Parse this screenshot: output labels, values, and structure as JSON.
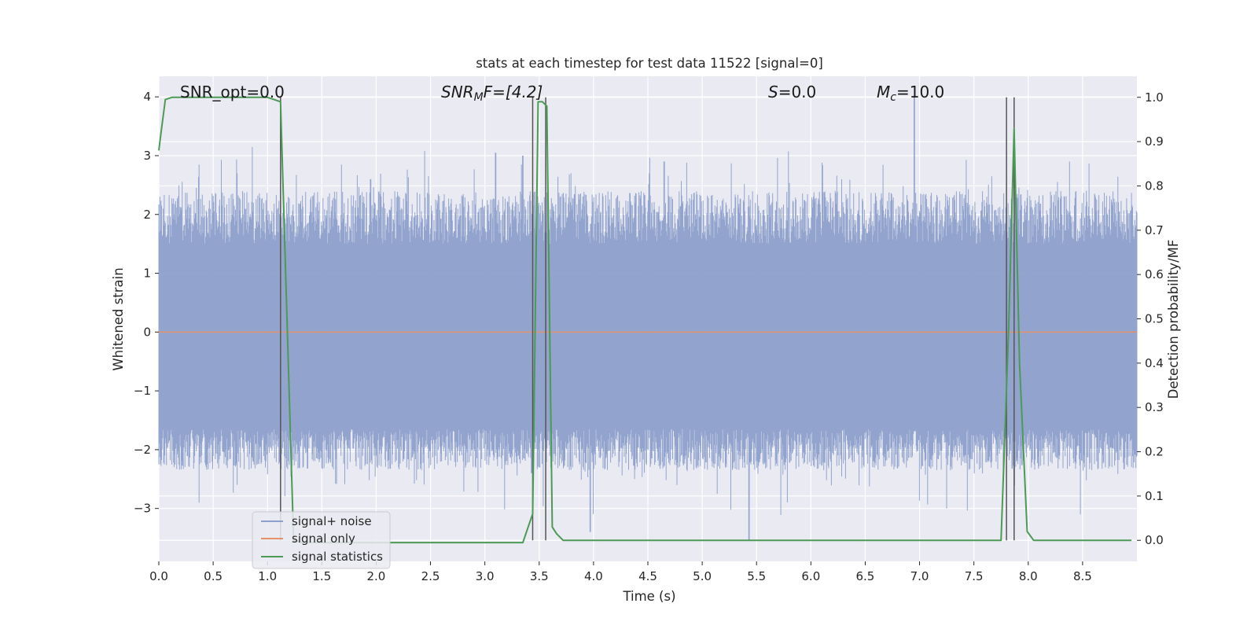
{
  "chart_data": {
    "type": "line",
    "title": "stats at each timestep for test data 11522 [signal=0]",
    "xlabel": "Time (s)",
    "ylabel": "Whitened strain",
    "y2label": "Detection probability/MF",
    "xlim": [
      0,
      9.0
    ],
    "ylim": [
      -3.9,
      4.35
    ],
    "y2lim": [
      -0.0475,
      1.0475
    ],
    "xticks": [
      "0.0",
      "0.5",
      "1.0",
      "1.5",
      "2.0",
      "2.5",
      "3.0",
      "3.5",
      "4.0",
      "4.5",
      "5.0",
      "5.5",
      "6.0",
      "6.5",
      "7.0",
      "7.5",
      "8.0",
      "8.5"
    ],
    "yticks": [
      "4",
      "3",
      "2",
      "1",
      "0",
      "−1",
      "−2",
      "−3"
    ],
    "y2ticks": [
      "1.0",
      "0.9",
      "0.8",
      "0.7",
      "0.6",
      "0.5",
      "0.4",
      "0.3",
      "0.2",
      "0.1",
      "0.0"
    ],
    "annotations": {
      "snr_opt": "SNR_opt=0.0",
      "snr_mf_main": "SNR",
      "snr_mf_sub": "M",
      "snr_mf_rest": "F=[4.2]",
      "s_main": "S",
      "s_rest": "=0.0",
      "mc_main": "M",
      "mc_sub": "c",
      "mc_rest": "=10.0"
    },
    "legend": {
      "placement": "lower-left",
      "entries": [
        "signal+ noise",
        "signal only",
        "signal statistics"
      ]
    },
    "colors": {
      "noise": "#8da0cb",
      "signal": "#e5926b",
      "stats": "#4c9a55",
      "vlines": "#555555",
      "axes_bg": "#eaeaf2",
      "grid": "#ffffff"
    },
    "noise": {
      "description_of_envelope_only": "",
      "core_level": 1.7,
      "neg_core_level": -1.9,
      "peaks": [
        {
          "x": 0.37,
          "y": 2.85
        },
        {
          "x": 0.37,
          "y": -2.9
        },
        {
          "x": 0.72,
          "y": 2.7
        },
        {
          "x": 0.72,
          "y": -2.6
        },
        {
          "x": 1.95,
          "y": 2.6
        },
        {
          "x": 3.1,
          "y": 3.05
        },
        {
          "x": 3.35,
          "y": 3.0
        },
        {
          "x": 3.43,
          "y": -2.4
        },
        {
          "x": 3.97,
          "y": -3.4
        },
        {
          "x": 5.43,
          "y": -3.55
        },
        {
          "x": 6.95,
          "y": 4.0
        },
        {
          "x": 7.25,
          "y": -3.0
        },
        {
          "x": 8.48,
          "y": -3.1
        },
        {
          "x": 4.65,
          "y": 2.9
        }
      ]
    },
    "signal_only": {
      "x": [
        0,
        9.0
      ],
      "y": [
        0,
        0
      ]
    },
    "signal_statistics": {
      "x": [
        0.0,
        0.02,
        0.06,
        0.12,
        1.0,
        1.12,
        1.24,
        1.32,
        2.0,
        3.0,
        3.35,
        3.44,
        3.49,
        3.53,
        3.57,
        3.62,
        3.66,
        3.72,
        4.5,
        5.5,
        6.5,
        7.0,
        7.5,
        7.75,
        7.82,
        7.87,
        7.92,
        7.99,
        8.05,
        8.5,
        8.95
      ],
      "y": [
        0.88,
        0.92,
        0.995,
        1.0,
        1.0,
        0.99,
        0.0,
        -0.005,
        -0.005,
        -0.005,
        -0.005,
        0.06,
        0.99,
        0.99,
        0.98,
        0.03,
        0.015,
        0.0,
        0.0,
        0.0,
        0.0,
        0.0,
        0.0,
        0.0,
        0.48,
        0.93,
        0.4,
        0.02,
        0.0,
        0.0,
        0.0
      ]
    },
    "vlines": [
      1.12,
      3.44,
      3.56,
      7.8,
      7.87
    ]
  }
}
